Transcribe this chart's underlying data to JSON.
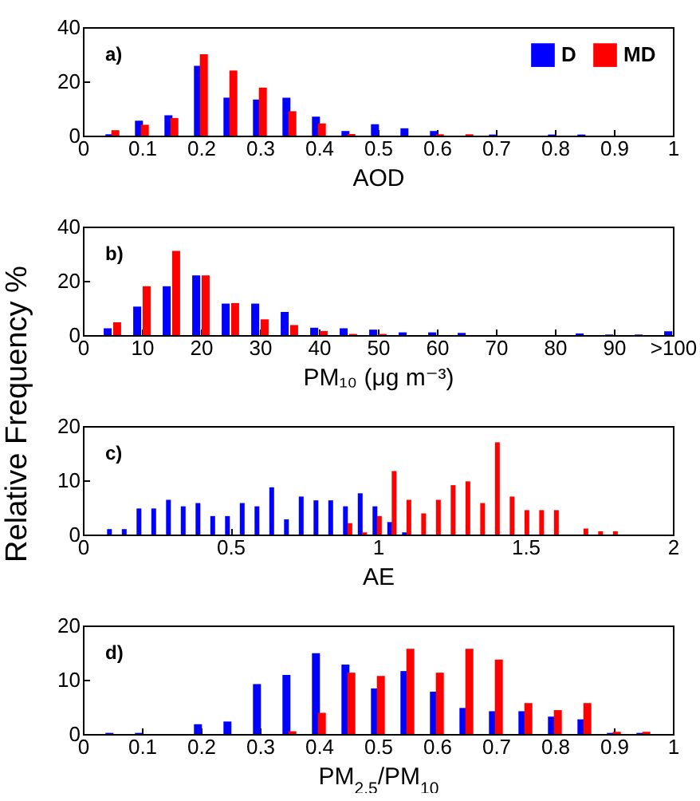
{
  "chart_data": [
    {
      "type": "bar",
      "xlabel": "AOD",
      "ylabel": null,
      "annotations": [
        "a)"
      ],
      "legend": "top right",
      "xlim": [
        0,
        1
      ],
      "xticks": [
        0,
        0.1,
        0.2,
        0.3,
        0.4,
        0.5,
        0.6,
        0.7,
        0.8,
        0.9,
        1
      ],
      "ylim": [
        0,
        40
      ],
      "yticks": [
        0,
        20,
        40
      ],
      "series": [
        {
          "name": "D",
          "color": "#0000ff",
          "x": [
            0.045,
            0.095,
            0.145,
            0.195,
            0.245,
            0.295,
            0.345,
            0.395,
            0.445,
            0.495,
            0.545,
            0.595,
            0.645,
            0.695,
            0.745,
            0.795,
            0.845
          ],
          "values": [
            0.5,
            5.5,
            7.5,
            25.7,
            14,
            13.3,
            14,
            7,
            1.7,
            4.2,
            2.7,
            1.7,
            0,
            0.4,
            0,
            0.4,
            0.4
          ]
        },
        {
          "name": "MD",
          "color": "#ff0000",
          "x": [
            0.055,
            0.105,
            0.155,
            0.205,
            0.255,
            0.305,
            0.355,
            0.405,
            0.455,
            0.505,
            0.555,
            0.605,
            0.655
          ],
          "values": [
            2,
            4,
            6.5,
            30,
            24,
            17.7,
            9,
            4.5,
            0.6,
            0,
            0,
            0.5,
            0.5
          ]
        }
      ]
    },
    {
      "type": "bar",
      "xlabel": "PM₁₀ (μg m⁻³)",
      "ylabel": "Relative Frequency %",
      "annotations": [
        "b)"
      ],
      "xlim": [
        0,
        100
      ],
      "xticks": [
        0,
        10,
        20,
        30,
        40,
        50,
        60,
        70,
        80,
        90,
        {
          "value": 100,
          "label": ">100"
        }
      ],
      "ylim": [
        0,
        40
      ],
      "yticks": [
        0,
        20,
        40
      ],
      "series": [
        {
          "color": "#0000ff",
          "x": [
            4.2,
            9.2,
            14.2,
            19.2,
            24.2,
            29.2,
            34.2,
            39.2,
            44.2,
            49.2,
            54.2,
            59.2,
            64.2,
            69.2,
            74.2,
            79.2,
            84.2,
            89.2,
            94.2,
            99.2
          ],
          "values": [
            2.5,
            10.5,
            18,
            22,
            11.6,
            11.6,
            8.5,
            2.7,
            2.5,
            2,
            1,
            1,
            0.8,
            0,
            0,
            0,
            0.6,
            0.2,
            0.2,
            1.4
          ]
        },
        {
          "color": "#ff0000",
          "x": [
            5.8,
            10.8,
            15.8,
            20.8,
            25.8,
            30.8,
            35.8,
            40.8,
            45.8,
            50.8
          ],
          "values": [
            4.7,
            18,
            31,
            22,
            11.8,
            5.8,
            3.7,
            1.5,
            0.4,
            0.4
          ]
        }
      ]
    },
    {
      "type": "bar",
      "xlabel": "AE",
      "annotations": [
        "c)"
      ],
      "xlim": [
        0,
        2
      ],
      "xticks": [
        0,
        0.5,
        1,
        1.5,
        2
      ],
      "ylim": [
        0,
        20
      ],
      "yticks": [
        0,
        10,
        20
      ],
      "series": [
        {
          "color": "#0000ff",
          "x": [
            0.09,
            0.14,
            0.19,
            0.24,
            0.29,
            0.34,
            0.39,
            0.44,
            0.49,
            0.54,
            0.59,
            0.64,
            0.69,
            0.74,
            0.79,
            0.84,
            0.89,
            0.94,
            0.99,
            1.04,
            1.09
          ],
          "values": [
            1,
            1,
            4.8,
            4.8,
            6.4,
            5.2,
            5.8,
            3.4,
            3.4,
            5.8,
            5.2,
            8.7,
            2.8,
            7,
            6.3,
            6.3,
            5.2,
            7.6,
            5.2,
            2.3,
            0.4
          ]
        },
        {
          "color": "#ff0000",
          "x": [
            0.905,
            0.955,
            1.005,
            1.055,
            1.105,
            1.155,
            1.205,
            1.255,
            1.305,
            1.355,
            1.405,
            1.455,
            1.505,
            1.555,
            1.605,
            1.655,
            1.705,
            1.755,
            1.805
          ],
          "values": [
            2.1,
            0.4,
            3.4,
            11.7,
            6.4,
            3.9,
            6.4,
            9.1,
            9.8,
            5.8,
            17,
            7,
            4.5,
            4.5,
            4.5,
            0,
            1.1,
            0.6,
            0.6
          ]
        }
      ]
    },
    {
      "type": "bar",
      "xlabel": "PM$_{2.5}$/PM$_{10}$",
      "annotations": [
        "d)"
      ],
      "xlim": [
        0,
        1
      ],
      "xticks": [
        0,
        0.1,
        0.2,
        0.3,
        0.4,
        0.5,
        0.6,
        0.7,
        0.8,
        0.9,
        1
      ],
      "ylim": [
        0,
        20
      ],
      "yticks": [
        0,
        10,
        20
      ],
      "series": [
        {
          "color": "#0000ff",
          "x": [
            0.045,
            0.095,
            0.145,
            0.195,
            0.245,
            0.295,
            0.345,
            0.395,
            0.445,
            0.495,
            0.545,
            0.595,
            0.645,
            0.695,
            0.745,
            0.795,
            0.845,
            0.895,
            0.945
          ],
          "values": [
            0.2,
            0.2,
            0,
            1.8,
            2.3,
            9.2,
            10.9,
            14.9,
            12.8,
            8.4,
            11.6,
            7.8,
            4.8,
            4.2,
            4.2,
            3.2,
            2.7,
            0.2,
            0.2
          ]
        },
        {
          "color": "#ff0000",
          "x": [
            0.355,
            0.405,
            0.455,
            0.505,
            0.555,
            0.605,
            0.655,
            0.705,
            0.755,
            0.805,
            0.855,
            0.905,
            0.955
          ],
          "values": [
            0.5,
            3.9,
            11.3,
            10.7,
            15.7,
            11.3,
            15.7,
            13.7,
            5.7,
            4.4,
            5.7,
            0.4,
            0.4
          ]
        }
      ]
    }
  ]
}
